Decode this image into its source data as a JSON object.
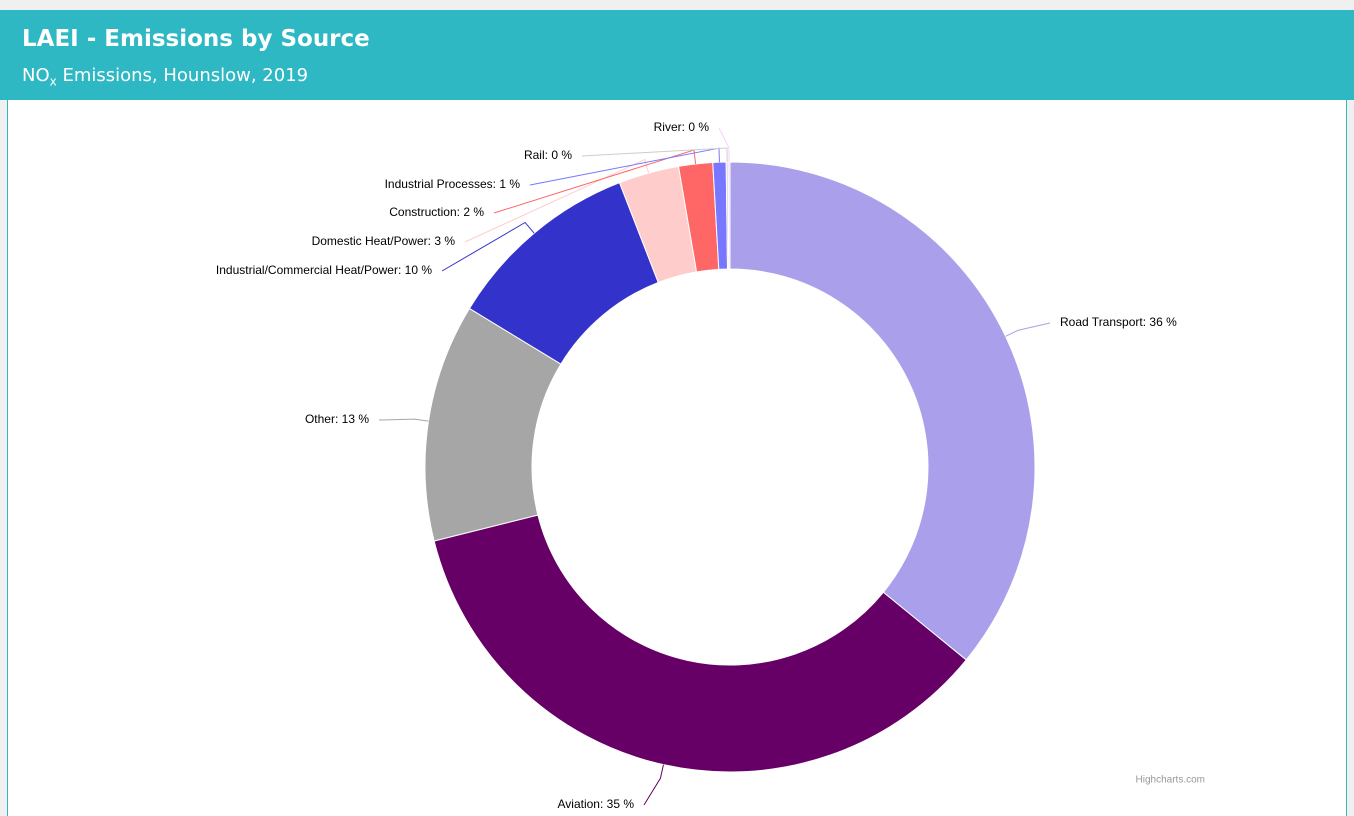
{
  "chart_data": {
    "type": "pie",
    "title": "LAEI - Emissions by Source",
    "subtitle": {
      "main": "NO",
      "sub": "x",
      "rest": " Emissions, Hounslow, 2019"
    },
    "categories": [
      "Road Transport",
      "Aviation",
      "Other",
      "Industrial/Commercial Heat/Power",
      "Domestic Heat/Power",
      "Construction",
      "Industrial Processes",
      "Rail",
      "River"
    ],
    "values": [
      35.9,
      35.2,
      12.6,
      10.4,
      3.2,
      1.8,
      0.7,
      0.1,
      0.1
    ],
    "value_labels": [
      "36 %",
      "35 %",
      "13 %",
      "10 %",
      "3 %",
      "2 %",
      "1 %",
      "0 %",
      "0 %"
    ],
    "colors": [
      "#aa9fea",
      "#660066",
      "#a6a6a6",
      "#3333cc",
      "#ffcccc",
      "#ff6666",
      "#7777ff",
      "#cccccc",
      "#ffccff"
    ],
    "separator": ": ",
    "credits": "Highcharts.com"
  }
}
